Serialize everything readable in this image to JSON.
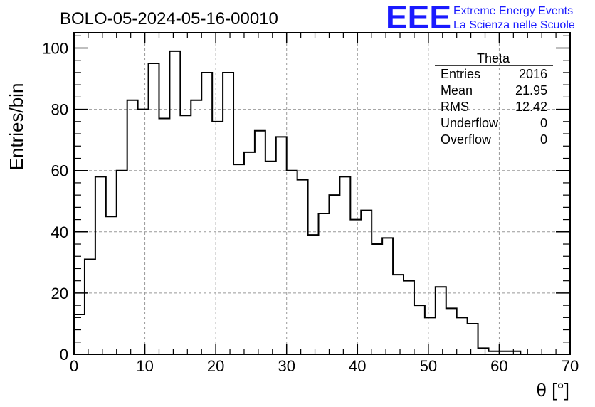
{
  "chart_data": {
    "type": "bar",
    "title": "BOLO-05-2024-05-16-00010",
    "xlabel": "θ [°]",
    "ylabel": "Entries/bin",
    "xlim": [
      0,
      70
    ],
    "ylim": [
      0,
      105
    ],
    "x_ticks": [
      "0",
      "10",
      "20",
      "30",
      "40",
      "50",
      "60",
      "70"
    ],
    "y_ticks": [
      "0",
      "20",
      "40",
      "60",
      "80",
      "100"
    ],
    "grid": true,
    "bin_width": 1.5,
    "bin_start": 0,
    "values": [
      13,
      31,
      58,
      45,
      60,
      83,
      80,
      95,
      77,
      99,
      78,
      83,
      92,
      76,
      92,
      62,
      66,
      73,
      63,
      71,
      60,
      57,
      39,
      46,
      52,
      58,
      44,
      47,
      36,
      38,
      26,
      24,
      16,
      12,
      22,
      15,
      12,
      10,
      2,
      1,
      1,
      1,
      0
    ],
    "stats": {
      "title": "Theta",
      "rows": [
        {
          "label": "Entries",
          "value": "2016"
        },
        {
          "label": "Mean",
          "value": "21.95"
        },
        {
          "label": "RMS",
          "value": "12.42"
        },
        {
          "label": "Underflow",
          "value": "0"
        },
        {
          "label": "Overflow",
          "value": "0"
        }
      ]
    },
    "logo": {
      "mark": "EEE",
      "line1": "Extreme Energy Events",
      "line2": "La Scienza nelle Scuole",
      "color": "#1a1aff"
    }
  }
}
